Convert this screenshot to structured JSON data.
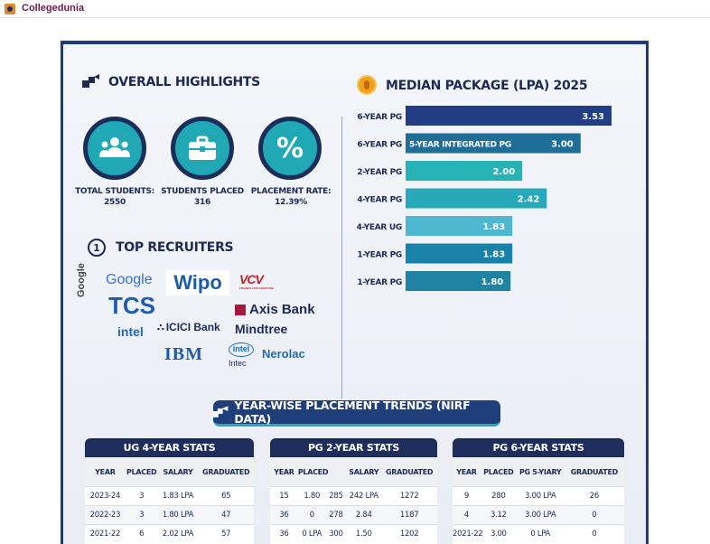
{
  "header": {
    "brand": "Collegedunia"
  },
  "highlights": {
    "title": "OVERALL HIGHLIGHTS",
    "stats": [
      {
        "label": "TOTAL STUDENTS:",
        "value": "2550",
        "icon": "people-icon"
      },
      {
        "label": "STUDENTS PLACED",
        "value": "316",
        "icon": "briefcase-icon"
      },
      {
        "label": "PLACEMENT RATE:",
        "value": "12.39%",
        "icon": "percent-icon"
      }
    ],
    "percent_symbol": "%"
  },
  "recruiters": {
    "title": "TOP RECRUITERS",
    "title_badge": "1",
    "logos": {
      "google_vertical": "Google",
      "google": "Google",
      "wipo": "Wipo",
      "vcv": "VCV",
      "vcv_sub": "FINANCE FOR EVERYONE",
      "tcs": "TCS",
      "axis": "Axis Bank",
      "intel": "intel",
      "icici": "ICICI Bank",
      "mindtree": "Mindtree",
      "ibm": "IBM",
      "intec_badge": "intel",
      "intec": "Intec",
      "nerolac": "Nerolac"
    }
  },
  "median": {
    "title": "MEDIAN PACKAGE (LPA) 2025"
  },
  "chart_data": {
    "type": "bar",
    "title": "MEDIAN PACKAGE (LPA) 2025",
    "orientation": "horizontal",
    "categories": [
      "6-YEAR PG",
      "6-YEAR PG",
      "2-YEAR PG",
      "4-YEAR PG",
      "4-YEAR UG",
      "1-YEAR PG",
      "1-YEAR PG"
    ],
    "inner_labels": [
      "",
      "5-YEAR INTEGRATED PG",
      "",
      "",
      "",
      "",
      ""
    ],
    "values": [
      3.53,
      3.0,
      2.0,
      2.42,
      1.83,
      1.83,
      1.8
    ],
    "value_labels": [
      "3.53",
      "3.00",
      "2.00",
      "2.42",
      "1.83",
      "1.83",
      "1.80"
    ],
    "colors": [
      "#233d85",
      "#1f6e98",
      "#27b3b5",
      "#27a9b9",
      "#4db8d0",
      "#1a82a8",
      "#1f84a4"
    ],
    "xlim": [
      0,
      4
    ]
  },
  "trends": {
    "title": "YEAR-WISE PLACEMENT TRENDS (NIRF DATA)",
    "tables": [
      {
        "title": "UG 4-YEAR STATS",
        "columns": [
          "YEAR",
          "PLACED",
          "SALARY",
          "GRADUATED"
        ],
        "rows": [
          [
            "2023-24",
            "3",
            "1.83 LPA",
            "65"
          ],
          [
            "2022-23",
            "3",
            "1.80 LPA",
            "47"
          ],
          [
            "2021-22",
            "6",
            "2.02 LPA",
            "57"
          ]
        ]
      },
      {
        "title": "PG 2-YEAR STATS",
        "columns": [
          "YEAR",
          "PLACED",
          "",
          "SALARY",
          "GRADUATED"
        ],
        "rows": [
          [
            "15",
            "1.80",
            "285",
            "242 LPA",
            "1272"
          ],
          [
            "36",
            "0",
            "278",
            "2.84",
            "1187"
          ],
          [
            "36",
            "0 LPA",
            "300",
            "1.50",
            "1202"
          ]
        ]
      },
      {
        "title": "PG 6-YEAR STATS",
        "columns": [
          "YEAR",
          "PLACED",
          "PG 5-YIARY",
          "GRADUATED"
        ],
        "rows": [
          [
            "9",
            "280",
            "3.00 LPA",
            "26"
          ],
          [
            "4",
            "3.12",
            "3.00 LPA",
            "0"
          ],
          [
            "2021-22",
            "3.00",
            "0 LPA",
            "0"
          ]
        ]
      }
    ]
  }
}
